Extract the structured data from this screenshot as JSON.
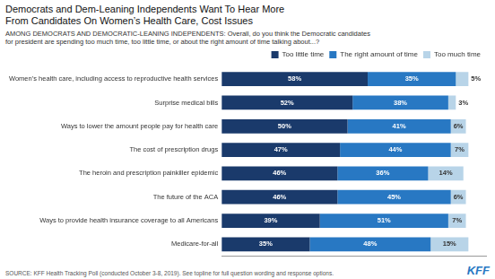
{
  "chart_data": {
    "type": "bar",
    "orientation": "horizontal",
    "stacked": true,
    "title": "Democrats and Dem-Leaning Independents Want To Hear More\nFrom Candidates On Women’s Health Care, Cost Issues",
    "subtitle": "AMONG DEMOCRATS AND DEMOCRATIC-LEANING INDEPENDENTS: Overall, do you think the Democratic candidates\nfor president are spending too much time, too little time, or about the right amount of time talking about...?",
    "source": "SOURCE: KFF Health Tracking Poll (conducted October 3-8, 2019). See topline for full question wording and response options.",
    "annotations": [
      "KFF"
    ],
    "categories": [
      "Women’s health care, including access to reproductive health services",
      "Surprise medical bills",
      "Ways to lower the amount people pay for health care",
      "The cost of prescription drugs",
      "The heroin and prescription painkiller epidemic",
      "The future of the ACA",
      "Ways to provide health insurance coverage to all Americans",
      "Medicare-for-all"
    ],
    "series": [
      {
        "name": "Too little time",
        "color": "#1a3a6b",
        "values": [
          58,
          52,
          50,
          47,
          46,
          46,
          39,
          35
        ],
        "value_labels": [
          "58%",
          "52%",
          "50%",
          "47%",
          "46%",
          "46%",
          "39%",
          "35%"
        ]
      },
      {
        "name": "The right amount of time",
        "color": "#2878c3",
        "values": [
          35,
          38,
          41,
          44,
          36,
          45,
          51,
          48
        ],
        "value_labels": [
          "35%",
          "38%",
          "41%",
          "44%",
          "36%",
          "45%",
          "51%",
          "48%"
        ]
      },
      {
        "name": "Too much time",
        "color": "#b8d4e8",
        "values": [
          5,
          3,
          6,
          7,
          14,
          6,
          7,
          15
        ],
        "value_labels": [
          "5%",
          "3%",
          "6%",
          "7%",
          "14%",
          "6%",
          "7%",
          "15%"
        ]
      }
    ],
    "xlim": [
      0,
      105
    ],
    "grid": false,
    "legend": "upper right",
    "data_labels": true,
    "tick_labels": "y"
  }
}
